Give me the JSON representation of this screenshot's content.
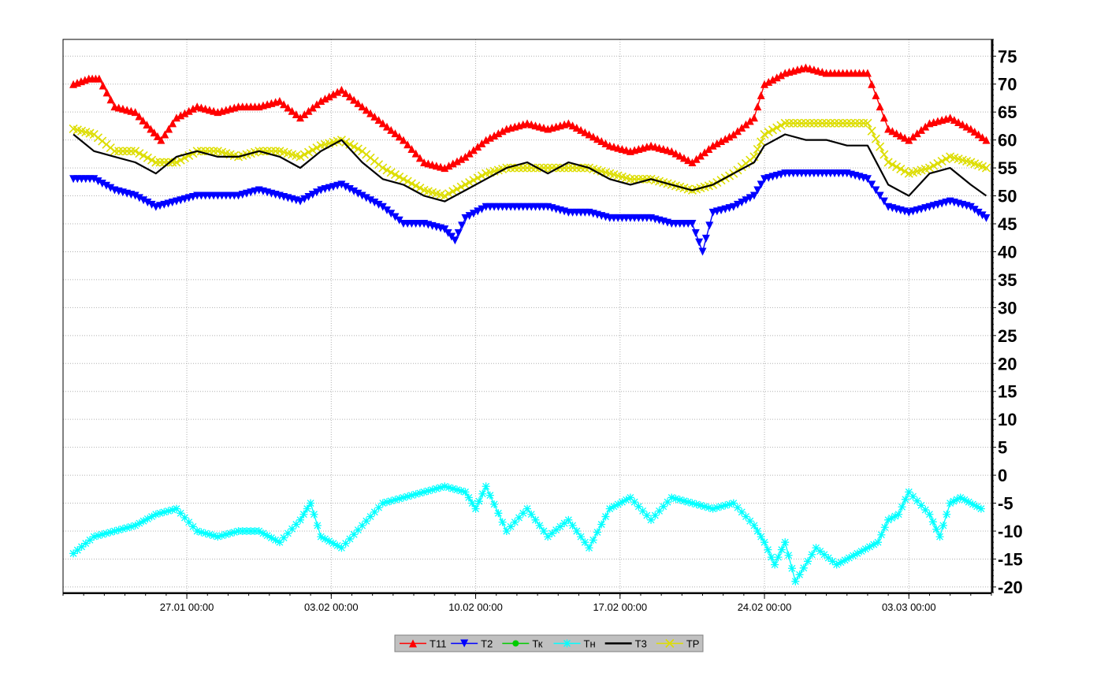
{
  "chart_data": {
    "type": "line",
    "title": "",
    "xlabel": "",
    "ylabel": "",
    "x_range": [
      "2026-01-21 00:00",
      "2026-03-07 00:00"
    ],
    "x_ticks": [
      {
        "date": "2026-01-27 00:00",
        "label": "27.01 00:00"
      },
      {
        "date": "2026-02-03 00:00",
        "label": "03.02 00:00"
      },
      {
        "date": "2026-02-10 00:00",
        "label": "10.02 00:00"
      },
      {
        "date": "2026-02-17 00:00",
        "label": "17.02 00:00"
      },
      {
        "date": "2026-02-24 00:00",
        "label": "24.02 00:00"
      },
      {
        "date": "2026-03-03 00:00",
        "label": "03.03 00:00"
      }
    ],
    "ylim": [
      -21,
      78
    ],
    "y_ticks": [
      75,
      70,
      65,
      60,
      55,
      50,
      45,
      40,
      35,
      30,
      25,
      20,
      15,
      10,
      5,
      0,
      -5,
      -10,
      -15,
      -20
    ],
    "y_axis_side": "right",
    "grid": true,
    "legend_position": "bottom-center",
    "series": [
      {
        "name": "T11",
        "color": "#ff0000",
        "marker": "triangle-up",
        "points": [
          [
            "2026-01-21 12:00",
            70
          ],
          [
            "2026-01-22 06:00",
            71
          ],
          [
            "2026-01-22 18:00",
            71
          ],
          [
            "2026-01-23 12:00",
            66
          ],
          [
            "2026-01-24 12:00",
            65
          ],
          [
            "2026-01-25 06:00",
            62
          ],
          [
            "2026-01-25 18:00",
            60
          ],
          [
            "2026-01-26 12:00",
            64
          ],
          [
            "2026-01-27 12:00",
            66
          ],
          [
            "2026-01-28 12:00",
            65
          ],
          [
            "2026-01-29 12:00",
            66
          ],
          [
            "2026-01-30 12:00",
            66
          ],
          [
            "2026-01-31 12:00",
            67
          ],
          [
            "2026-02-01 12:00",
            64
          ],
          [
            "2026-02-02 12:00",
            67
          ],
          [
            "2026-02-03 12:00",
            69
          ],
          [
            "2026-02-04 12:00",
            66
          ],
          [
            "2026-02-05 12:00",
            63
          ],
          [
            "2026-02-06 12:00",
            60
          ],
          [
            "2026-02-07 12:00",
            56
          ],
          [
            "2026-02-08 12:00",
            55
          ],
          [
            "2026-02-09 12:00",
            57
          ],
          [
            "2026-02-10 12:00",
            60
          ],
          [
            "2026-02-11 12:00",
            62
          ],
          [
            "2026-02-12 12:00",
            63
          ],
          [
            "2026-02-13 12:00",
            62
          ],
          [
            "2026-02-14 12:00",
            63
          ],
          [
            "2026-02-15 12:00",
            61
          ],
          [
            "2026-02-16 12:00",
            59
          ],
          [
            "2026-02-17 12:00",
            58
          ],
          [
            "2026-02-18 12:00",
            59
          ],
          [
            "2026-02-19 12:00",
            58
          ],
          [
            "2026-02-20 12:00",
            56
          ],
          [
            "2026-02-21 12:00",
            59
          ],
          [
            "2026-02-22 12:00",
            61
          ],
          [
            "2026-02-23 12:00",
            64
          ],
          [
            "2026-02-24 00:00",
            70
          ],
          [
            "2026-02-25 00:00",
            72
          ],
          [
            "2026-02-26 00:00",
            73
          ],
          [
            "2026-02-27 00:00",
            72
          ],
          [
            "2026-02-28 00:00",
            72
          ],
          [
            "2026-03-01 00:00",
            72
          ],
          [
            "2026-03-02 00:00",
            62
          ],
          [
            "2026-03-03 00:00",
            60
          ],
          [
            "2026-03-04 00:00",
            63
          ],
          [
            "2026-03-05 00:00",
            64
          ],
          [
            "2026-03-06 00:00",
            62
          ],
          [
            "2026-03-06 18:00",
            60
          ]
        ]
      },
      {
        "name": "T2",
        "color": "#0000ff",
        "marker": "triangle-down",
        "points": [
          [
            "2026-01-21 12:00",
            53
          ],
          [
            "2026-01-22 12:00",
            53
          ],
          [
            "2026-01-23 12:00",
            51
          ],
          [
            "2026-01-24 12:00",
            50
          ],
          [
            "2026-01-25 12:00",
            48
          ],
          [
            "2026-01-26 12:00",
            49
          ],
          [
            "2026-01-27 12:00",
            50
          ],
          [
            "2026-01-28 12:00",
            50
          ],
          [
            "2026-01-29 12:00",
            50
          ],
          [
            "2026-01-30 12:00",
            51
          ],
          [
            "2026-01-31 12:00",
            50
          ],
          [
            "2026-02-01 12:00",
            49
          ],
          [
            "2026-02-02 12:00",
            51
          ],
          [
            "2026-02-03 12:00",
            52
          ],
          [
            "2026-02-04 12:00",
            50
          ],
          [
            "2026-02-05 12:00",
            48
          ],
          [
            "2026-02-06 12:00",
            45
          ],
          [
            "2026-02-07 12:00",
            45
          ],
          [
            "2026-02-08 12:00",
            44
          ],
          [
            "2026-02-09 00:00",
            42
          ],
          [
            "2026-02-09 12:00",
            46
          ],
          [
            "2026-02-10 12:00",
            48
          ],
          [
            "2026-02-11 12:00",
            48
          ],
          [
            "2026-02-12 12:00",
            48
          ],
          [
            "2026-02-13 12:00",
            48
          ],
          [
            "2026-02-14 12:00",
            47
          ],
          [
            "2026-02-15 12:00",
            47
          ],
          [
            "2026-02-16 12:00",
            46
          ],
          [
            "2026-02-17 12:00",
            46
          ],
          [
            "2026-02-18 12:00",
            46
          ],
          [
            "2026-02-19 12:00",
            45
          ],
          [
            "2026-02-20 12:00",
            45
          ],
          [
            "2026-02-21 00:00",
            40
          ],
          [
            "2026-02-21 12:00",
            47
          ],
          [
            "2026-02-22 12:00",
            48
          ],
          [
            "2026-02-23 12:00",
            50
          ],
          [
            "2026-02-24 00:00",
            53
          ],
          [
            "2026-02-25 00:00",
            54
          ],
          [
            "2026-02-26 00:00",
            54
          ],
          [
            "2026-02-27 00:00",
            54
          ],
          [
            "2026-02-28 00:00",
            54
          ],
          [
            "2026-03-01 00:00",
            53
          ],
          [
            "2026-03-02 00:00",
            48
          ],
          [
            "2026-03-03 00:00",
            47
          ],
          [
            "2026-03-04 00:00",
            48
          ],
          [
            "2026-03-05 00:00",
            49
          ],
          [
            "2026-03-06 00:00",
            48
          ],
          [
            "2026-03-06 18:00",
            46
          ]
        ]
      },
      {
        "name": "Тк",
        "color": "#00cc00",
        "marker": "circle",
        "points": []
      },
      {
        "name": "Тн",
        "color": "#00ffff",
        "marker": "star",
        "points": [
          [
            "2026-01-21 12:00",
            -14
          ],
          [
            "2026-01-22 12:00",
            -11
          ],
          [
            "2026-01-23 12:00",
            -10
          ],
          [
            "2026-01-24 12:00",
            -9
          ],
          [
            "2026-01-25 12:00",
            -7
          ],
          [
            "2026-01-26 12:00",
            -6
          ],
          [
            "2026-01-27 12:00",
            -10
          ],
          [
            "2026-01-28 12:00",
            -11
          ],
          [
            "2026-01-29 12:00",
            -10
          ],
          [
            "2026-01-30 12:00",
            -10
          ],
          [
            "2026-01-31 12:00",
            -12
          ],
          [
            "2026-02-01 12:00",
            -8
          ],
          [
            "2026-02-02 00:00",
            -5
          ],
          [
            "2026-02-02 12:00",
            -11
          ],
          [
            "2026-02-03 12:00",
            -13
          ],
          [
            "2026-02-04 12:00",
            -9
          ],
          [
            "2026-02-05 12:00",
            -5
          ],
          [
            "2026-02-06 12:00",
            -4
          ],
          [
            "2026-02-07 12:00",
            -3
          ],
          [
            "2026-02-08 12:00",
            -2
          ],
          [
            "2026-02-09 12:00",
            -3
          ],
          [
            "2026-02-10 00:00",
            -6
          ],
          [
            "2026-02-10 12:00",
            -2
          ],
          [
            "2026-02-11 12:00",
            -10
          ],
          [
            "2026-02-12 12:00",
            -6
          ],
          [
            "2026-02-13 12:00",
            -11
          ],
          [
            "2026-02-14 12:00",
            -8
          ],
          [
            "2026-02-15 12:00",
            -13
          ],
          [
            "2026-02-16 12:00",
            -6
          ],
          [
            "2026-02-17 12:00",
            -4
          ],
          [
            "2026-02-18 12:00",
            -8
          ],
          [
            "2026-02-19 12:00",
            -4
          ],
          [
            "2026-02-20 12:00",
            -5
          ],
          [
            "2026-02-21 12:00",
            -6
          ],
          [
            "2026-02-22 12:00",
            -5
          ],
          [
            "2026-02-23 12:00",
            -9
          ],
          [
            "2026-02-24 00:00",
            -12
          ],
          [
            "2026-02-24 12:00",
            -16
          ],
          [
            "2026-02-25 00:00",
            -12
          ],
          [
            "2026-02-25 12:00",
            -19
          ],
          [
            "2026-02-26 12:00",
            -13
          ],
          [
            "2026-02-27 12:00",
            -16
          ],
          [
            "2026-02-28 12:00",
            -14
          ],
          [
            "2026-03-01 12:00",
            -12
          ],
          [
            "2026-03-02 00:00",
            -8
          ],
          [
            "2026-03-02 12:00",
            -7
          ],
          [
            "2026-03-03 00:00",
            -3
          ],
          [
            "2026-03-04 00:00",
            -7
          ],
          [
            "2026-03-04 12:00",
            -11
          ],
          [
            "2026-03-05 00:00",
            -5
          ],
          [
            "2026-03-05 12:00",
            -4
          ],
          [
            "2026-03-06 12:00",
            -6
          ]
        ]
      },
      {
        "name": "Т3",
        "color": "#000000",
        "marker": "none",
        "points": [
          [
            "2026-01-21 12:00",
            61
          ],
          [
            "2026-01-22 12:00",
            58
          ],
          [
            "2026-01-23 12:00",
            57
          ],
          [
            "2026-01-24 12:00",
            56
          ],
          [
            "2026-01-25 12:00",
            54
          ],
          [
            "2026-01-26 12:00",
            57
          ],
          [
            "2026-01-27 12:00",
            58
          ],
          [
            "2026-01-28 12:00",
            57
          ],
          [
            "2026-01-29 12:00",
            57
          ],
          [
            "2026-01-30 12:00",
            58
          ],
          [
            "2026-01-31 12:00",
            57
          ],
          [
            "2026-02-01 12:00",
            55
          ],
          [
            "2026-02-02 12:00",
            58
          ],
          [
            "2026-02-03 12:00",
            60
          ],
          [
            "2026-02-04 12:00",
            56
          ],
          [
            "2026-02-05 12:00",
            53
          ],
          [
            "2026-02-06 12:00",
            52
          ],
          [
            "2026-02-07 12:00",
            50
          ],
          [
            "2026-02-08 12:00",
            49
          ],
          [
            "2026-02-09 12:00",
            51
          ],
          [
            "2026-02-10 12:00",
            53
          ],
          [
            "2026-02-11 12:00",
            55
          ],
          [
            "2026-02-12 12:00",
            56
          ],
          [
            "2026-02-13 12:00",
            54
          ],
          [
            "2026-02-14 12:00",
            56
          ],
          [
            "2026-02-15 12:00",
            55
          ],
          [
            "2026-02-16 12:00",
            53
          ],
          [
            "2026-02-17 12:00",
            52
          ],
          [
            "2026-02-18 12:00",
            53
          ],
          [
            "2026-02-19 12:00",
            52
          ],
          [
            "2026-02-20 12:00",
            51
          ],
          [
            "2026-02-21 12:00",
            52
          ],
          [
            "2026-02-22 12:00",
            54
          ],
          [
            "2026-02-23 12:00",
            56
          ],
          [
            "2026-02-24 00:00",
            59
          ],
          [
            "2026-02-25 00:00",
            61
          ],
          [
            "2026-02-26 00:00",
            60
          ],
          [
            "2026-02-27 00:00",
            60
          ],
          [
            "2026-02-28 00:00",
            59
          ],
          [
            "2026-03-01 00:00",
            59
          ],
          [
            "2026-03-02 00:00",
            52
          ],
          [
            "2026-03-03 00:00",
            50
          ],
          [
            "2026-03-04 00:00",
            54
          ],
          [
            "2026-03-05 00:00",
            55
          ],
          [
            "2026-03-06 00:00",
            52
          ],
          [
            "2026-03-06 18:00",
            50
          ]
        ]
      },
      {
        "name": "ТР",
        "color": "#dddd00",
        "marker": "x",
        "points": [
          [
            "2026-01-21 12:00",
            62
          ],
          [
            "2026-01-22 12:00",
            61
          ],
          [
            "2026-01-23 12:00",
            58
          ],
          [
            "2026-01-24 12:00",
            58
          ],
          [
            "2026-01-25 12:00",
            56
          ],
          [
            "2026-01-26 12:00",
            56
          ],
          [
            "2026-01-27 12:00",
            58
          ],
          [
            "2026-01-28 12:00",
            58
          ],
          [
            "2026-01-29 12:00",
            57
          ],
          [
            "2026-01-30 12:00",
            58
          ],
          [
            "2026-01-31 12:00",
            58
          ],
          [
            "2026-02-01 12:00",
            57
          ],
          [
            "2026-02-02 12:00",
            59
          ],
          [
            "2026-02-03 12:00",
            60
          ],
          [
            "2026-02-04 12:00",
            58
          ],
          [
            "2026-02-05 12:00",
            55
          ],
          [
            "2026-02-06 12:00",
            53
          ],
          [
            "2026-02-07 12:00",
            51
          ],
          [
            "2026-02-08 12:00",
            50
          ],
          [
            "2026-02-09 12:00",
            52
          ],
          [
            "2026-02-10 12:00",
            54
          ],
          [
            "2026-02-11 12:00",
            55
          ],
          [
            "2026-02-12 12:00",
            55
          ],
          [
            "2026-02-13 12:00",
            55
          ],
          [
            "2026-02-14 12:00",
            55
          ],
          [
            "2026-02-15 12:00",
            55
          ],
          [
            "2026-02-16 12:00",
            54
          ],
          [
            "2026-02-17 12:00",
            53
          ],
          [
            "2026-02-18 12:00",
            53
          ],
          [
            "2026-02-19 12:00",
            52
          ],
          [
            "2026-02-20 12:00",
            51
          ],
          [
            "2026-02-21 12:00",
            52
          ],
          [
            "2026-02-22 12:00",
            54
          ],
          [
            "2026-02-23 12:00",
            57
          ],
          [
            "2026-02-24 00:00",
            61
          ],
          [
            "2026-02-25 00:00",
            63
          ],
          [
            "2026-02-26 00:00",
            63
          ],
          [
            "2026-02-27 00:00",
            63
          ],
          [
            "2026-02-28 00:00",
            63
          ],
          [
            "2026-03-01 00:00",
            63
          ],
          [
            "2026-03-02 00:00",
            56
          ],
          [
            "2026-03-03 00:00",
            54
          ],
          [
            "2026-03-04 00:00",
            55
          ],
          [
            "2026-03-05 00:00",
            57
          ],
          [
            "2026-03-06 00:00",
            56
          ],
          [
            "2026-03-06 18:00",
            55
          ]
        ]
      }
    ]
  }
}
